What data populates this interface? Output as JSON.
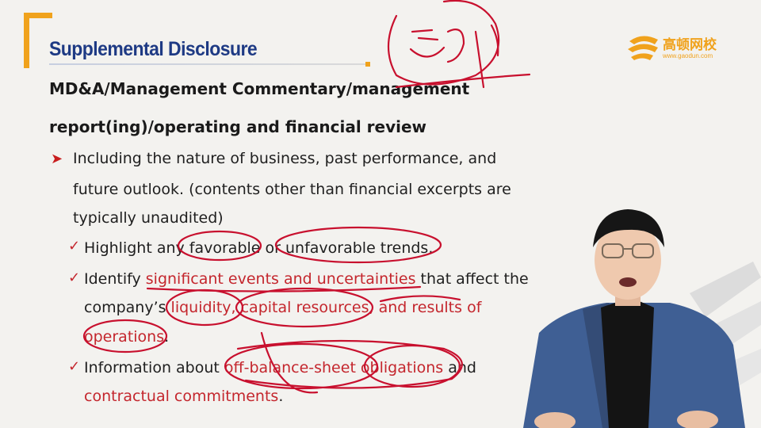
{
  "slide": {
    "title": "Supplemental Disclosure",
    "heading_line1": "MD&A/Management Commentary/management",
    "heading_line2": "report(ing)/operating and financial review",
    "main_bullet": {
      "line1": "Including the nature of business, past performance, and",
      "line2": "future outlook. (contents other than financial excerpts are",
      "line3": "typically unaudited)"
    },
    "sub_bullets": [
      {
        "l1_a": "Highlight any favorable or unfavorable trends."
      },
      {
        "l1_a": "Identify ",
        "l1_red": "significant events and uncertainties",
        "l1_b": " that affect the",
        "l2_a": "company’s ",
        "l2_red": "liquidity, capital resources, and results of",
        "l3_red": "operations",
        "l3_b": "."
      },
      {
        "l1_a": "Information about ",
        "l1_red": "off-balance-sheet obligations",
        "l1_b": " and",
        "l2_red": "contractual commitments",
        "l2_b": "."
      }
    ]
  },
  "logo": {
    "name": "高顿网校",
    "url": "www.gaodun.com"
  },
  "colors": {
    "title": "#1e3a84",
    "accent": "#f0a21c",
    "red": "#c4262d",
    "ink": "#c8102e"
  },
  "icons": {
    "bullet": "arrow-right-icon",
    "check": "check-icon"
  }
}
